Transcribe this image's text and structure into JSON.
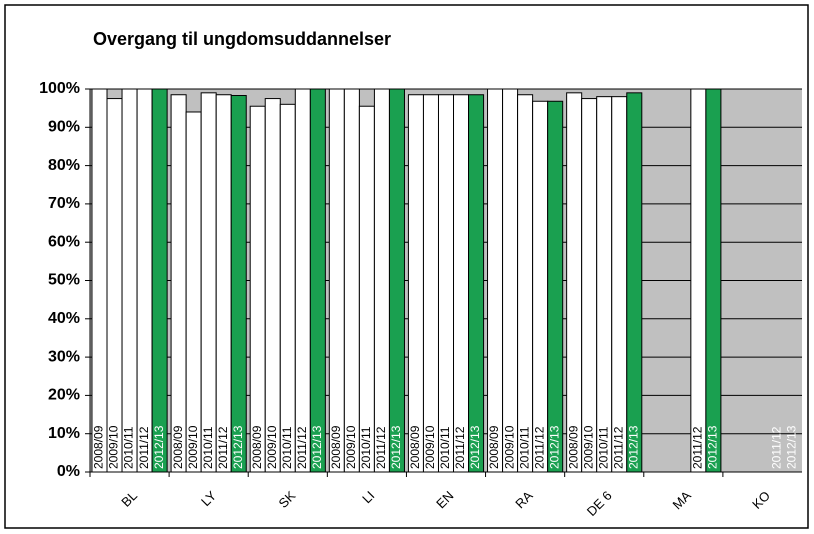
{
  "chart_data": {
    "type": "bar",
    "title": "Overgang til ungdomsuddannelser",
    "categories": [
      "BL",
      "LY",
      "SK",
      "LI",
      "EN",
      "RA",
      "DE 6",
      "MA",
      "KO"
    ],
    "series": [
      {
        "name": "2008/09",
        "color": "#ffffff",
        "values": [
          100,
          98.5,
          95.5,
          100,
          98.5,
          100,
          99,
          null,
          null
        ]
      },
      {
        "name": "2009/10",
        "color": "#ffffff",
        "values": [
          97.5,
          94,
          97.5,
          100,
          98.5,
          100,
          97.5,
          null,
          null
        ]
      },
      {
        "name": "2010/11",
        "color": "#ffffff",
        "values": [
          100,
          99,
          96,
          95.5,
          98.5,
          98.5,
          98,
          null,
          null
        ]
      },
      {
        "name": "2011/12",
        "color": "#ffffff",
        "values": [
          100,
          98.5,
          100,
          100,
          98.5,
          96.8,
          98,
          100,
          0
        ]
      },
      {
        "name": "2012/13",
        "color": "#1aa050",
        "values": [
          100,
          98.3,
          100,
          100,
          98.5,
          96.8,
          99,
          100,
          0
        ]
      }
    ],
    "ylim": [
      0,
      100
    ],
    "yticks": [
      {
        "value": 0,
        "label": "0%"
      },
      {
        "value": 10,
        "label": "10%"
      },
      {
        "value": 20,
        "label": "20%"
      },
      {
        "value": 30,
        "label": "30%"
      },
      {
        "value": 40,
        "label": "40%"
      },
      {
        "value": 50,
        "label": "50%"
      },
      {
        "value": 60,
        "label": "60%"
      },
      {
        "value": 70,
        "label": "70%"
      },
      {
        "value": 80,
        "label": "80%"
      },
      {
        "value": 90,
        "label": "90%"
      },
      {
        "value": 100,
        "label": "100%"
      }
    ],
    "grid": true
  }
}
